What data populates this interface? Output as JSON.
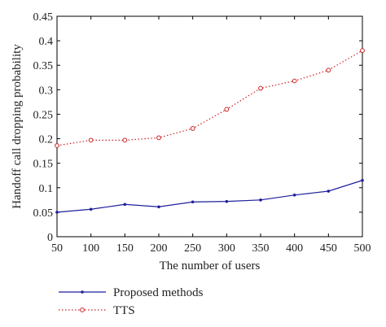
{
  "chart_data": {
    "type": "line",
    "title": "",
    "xlabel": "The number of users",
    "ylabel": "Handoff call dropping probability",
    "x": [
      50,
      100,
      150,
      200,
      250,
      300,
      350,
      400,
      450,
      500
    ],
    "xlim": [
      50,
      500
    ],
    "ylim": [
      0,
      0.45
    ],
    "xticks": [
      "50",
      "100",
      "150",
      "200",
      "250",
      "300",
      "350",
      "400",
      "450",
      "500"
    ],
    "yticks": [
      "0",
      "0.05",
      "0.1",
      "0.15",
      "0.2",
      "0.25",
      "0.3",
      "0.35",
      "0.4",
      "0.45"
    ],
    "grid": false,
    "legend": "bottom-left, below plot",
    "series": [
      {
        "name": "Proposed methods",
        "color": "#1f1f9e",
        "marker": "dot",
        "line": "solid",
        "values": [
          0.05,
          0.056,
          0.066,
          0.061,
          0.071,
          0.072,
          0.075,
          0.085,
          0.093,
          0.115
        ]
      },
      {
        "name": "TTS",
        "color": "#cc2222",
        "marker": "circle",
        "line": "dotted",
        "values": [
          0.186,
          0.197,
          0.197,
          0.202,
          0.221,
          0.26,
          0.303,
          0.318,
          0.34,
          0.38
        ]
      }
    ]
  }
}
